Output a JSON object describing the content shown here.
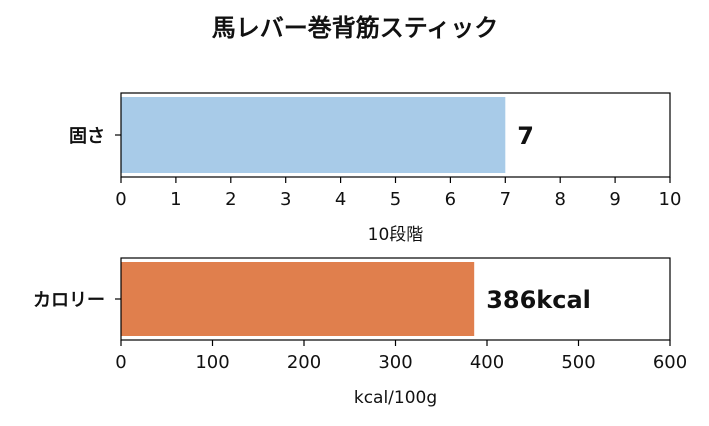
{
  "title": "馬レバー巻背筋スティック",
  "chart_data": [
    {
      "type": "bar",
      "orientation": "horizontal",
      "categories": [
        "固さ"
      ],
      "values": [
        7
      ],
      "value_label": "7",
      "xlabel": "10段階",
      "xlim": [
        0,
        10
      ],
      "xticks": [
        0,
        1,
        2,
        3,
        4,
        5,
        6,
        7,
        8,
        9,
        10
      ],
      "color": "#a8cbe8"
    },
    {
      "type": "bar",
      "orientation": "horizontal",
      "categories": [
        "カロリー"
      ],
      "values": [
        386
      ],
      "value_label": "386kcal",
      "xlabel": "kcal/100g",
      "xlim": [
        0,
        600
      ],
      "xticks": [
        0,
        100,
        200,
        300,
        400,
        500,
        600
      ],
      "color": "#e07f4d"
    }
  ]
}
